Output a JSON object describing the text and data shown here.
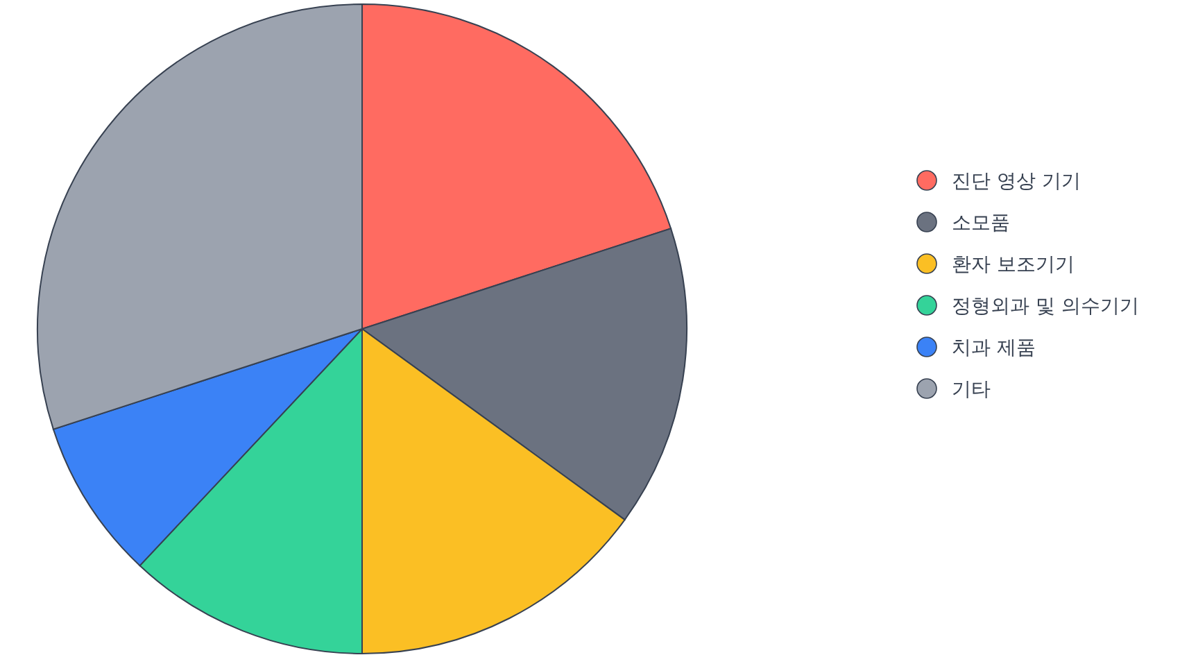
{
  "chart_data": {
    "type": "pie",
    "categories": [
      "진단 영상 기기",
      "소모품",
      "환자 보조기기",
      "정형외과 및 의수기기",
      "치과 제품",
      "기타"
    ],
    "values": [
      20,
      15,
      15,
      12,
      8,
      30
    ],
    "colors": [
      "#ff6b61",
      "#6b7280",
      "#fbbf24",
      "#34d399",
      "#3b82f6",
      "#9ca3af"
    ],
    "legend": "right"
  }
}
